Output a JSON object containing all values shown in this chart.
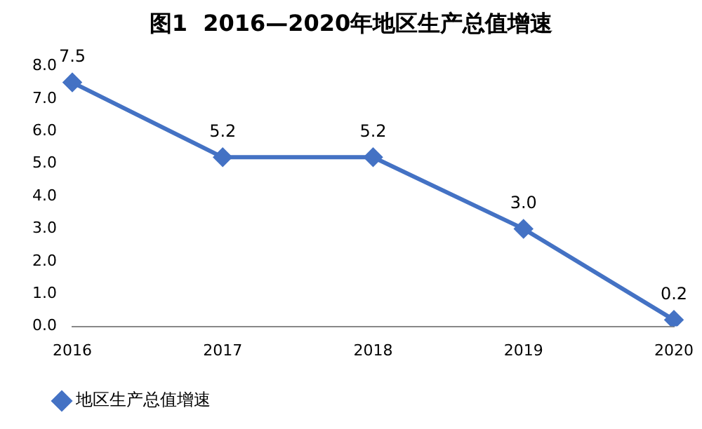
{
  "chart_data": {
    "type": "line",
    "title": "图1  2016—2020年地区生产总值增速",
    "categories": [
      "2016",
      "2017",
      "2018",
      "2019",
      "2020"
    ],
    "series": [
      {
        "name": "地区生产总值增速",
        "color": "#4472c4",
        "values": [
          7.5,
          5.2,
          5.2,
          3.0,
          0.2
        ],
        "value_labels": [
          "7.5",
          "5.2",
          "5.2",
          "3.0",
          "0.2"
        ]
      }
    ],
    "ylim": [
      0,
      8
    ],
    "yticks": [
      {
        "value": 0,
        "label": "0.0"
      },
      {
        "value": 1,
        "label": "1.0"
      },
      {
        "value": 2,
        "label": "2.0"
      },
      {
        "value": 3,
        "label": "3.0"
      },
      {
        "value": 4,
        "label": "4.0"
      },
      {
        "value": 5,
        "label": "5.0"
      },
      {
        "value": 6,
        "label": "6.0"
      },
      {
        "value": 7,
        "label": "7.0"
      },
      {
        "value": 8,
        "label": "8.0"
      }
    ],
    "grid": false,
    "legend": "bottom",
    "marker": "diamond",
    "line_style": "solid"
  }
}
